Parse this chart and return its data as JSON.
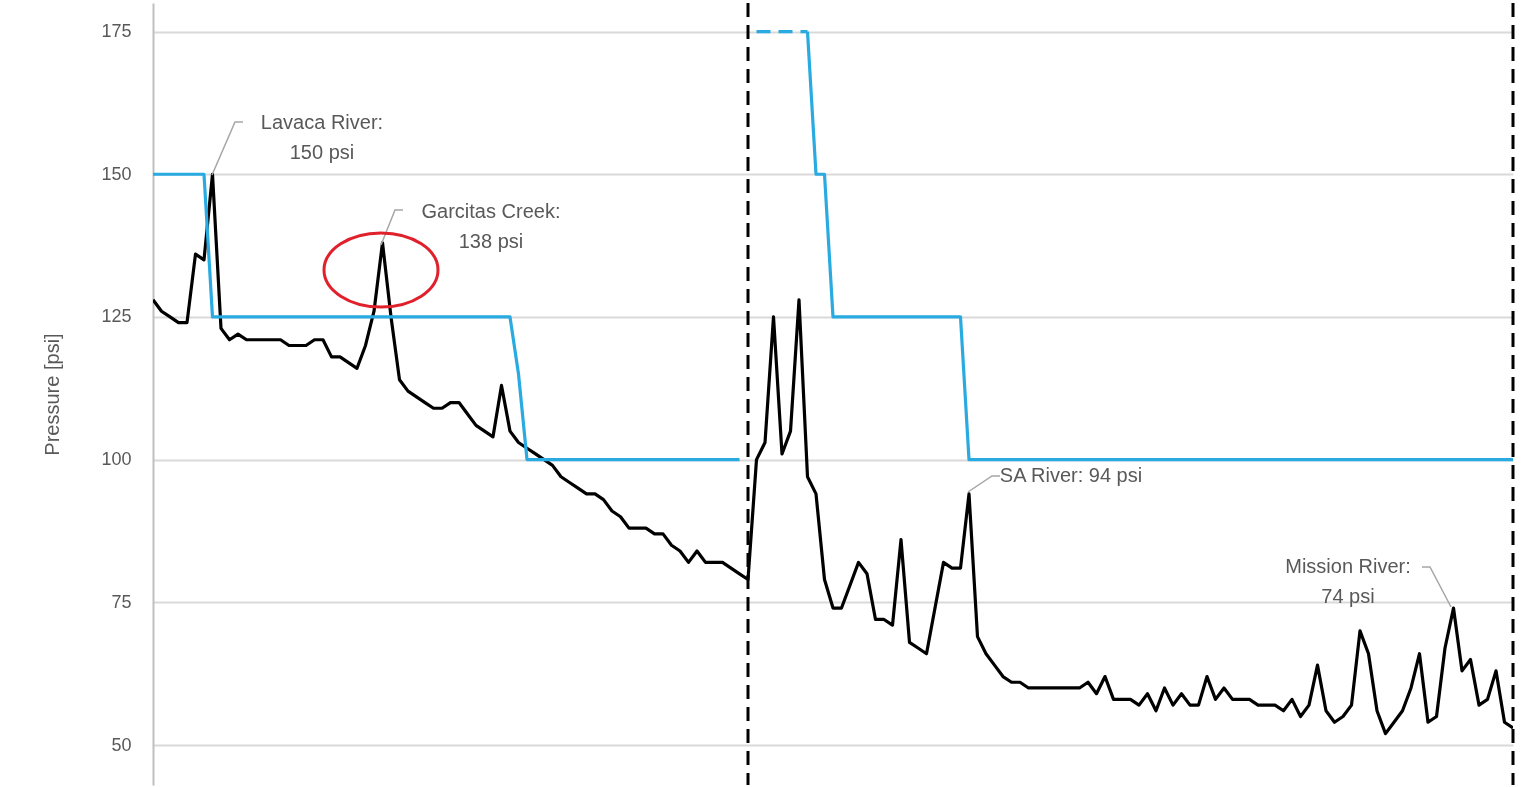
{
  "chart_data": {
    "type": "line",
    "ylabel": "Pressure [psi]",
    "ylim": [
      43,
      180
    ],
    "yticks": [
      50,
      75,
      100,
      125,
      150,
      175
    ],
    "grid": "y",
    "tick_labels": "y",
    "categories": [
      null,
      null,
      null,
      null,
      null,
      null,
      null,
      null,
      null,
      null,
      null,
      null,
      null,
      null,
      null,
      null,
      null,
      null,
      null,
      null,
      null,
      null,
      null,
      null,
      null,
      null,
      null,
      null,
      null,
      null,
      null,
      null,
      null,
      null,
      null,
      null,
      null,
      null,
      null,
      null,
      null,
      null,
      null,
      null,
      null,
      null,
      null,
      null,
      null,
      null,
      null,
      null,
      null,
      null,
      null,
      null,
      null,
      null,
      null,
      null,
      null,
      null,
      null,
      null,
      null,
      null,
      null,
      null,
      null,
      null,
      null,
      null,
      null,
      null,
      null,
      null,
      null,
      null,
      null,
      null,
      null,
      null,
      null,
      null,
      null,
      null,
      null,
      null,
      null,
      null,
      null,
      null,
      null,
      null,
      null,
      null,
      null,
      null,
      null,
      null,
      null,
      null,
      null,
      null,
      null,
      null,
      null,
      null,
      null,
      null,
      null,
      null,
      null,
      null,
      null,
      null,
      null,
      null,
      null,
      null,
      null,
      null,
      null,
      null,
      null,
      null,
      null,
      null,
      null,
      null,
      null,
      null,
      null,
      null,
      null,
      null,
      null,
      null,
      null,
      null,
      null,
      null,
      null,
      null,
      null,
      null,
      null,
      null,
      null,
      null,
      null,
      null,
      null,
      null,
      null,
      null,
      null,
      null,
      null,
      null,
      null
    ],
    "series": [
      {
        "color": "#000000",
        "line_style": "solid",
        "values": [
          128,
          126,
          125,
          124,
          124,
          136,
          135,
          150,
          123,
          121,
          122,
          121,
          121,
          121,
          121,
          121,
          120,
          120,
          120,
          121,
          121,
          118,
          118,
          117,
          116,
          120,
          126,
          138,
          125,
          114,
          112,
          111,
          110,
          109,
          109,
          110,
          110,
          108,
          106,
          105,
          104,
          113,
          105,
          103,
          102,
          101,
          100,
          99,
          97,
          96,
          95,
          94,
          94,
          93,
          91,
          90,
          88,
          88,
          88,
          87,
          87,
          85,
          84,
          82,
          84,
          82,
          82,
          82,
          81,
          80,
          79,
          100,
          103,
          125,
          101,
          105,
          128,
          97,
          94,
          79,
          74,
          74,
          78,
          82,
          80,
          72,
          72,
          71,
          86,
          68,
          67,
          66,
          74,
          82,
          81,
          81,
          94,
          69,
          66,
          64,
          62,
          61,
          61,
          60,
          60,
          60,
          60,
          60,
          60,
          60,
          61,
          59,
          62,
          58,
          58,
          58,
          57,
          59,
          56,
          60,
          57,
          59,
          57,
          57,
          62,
          58,
          60,
          58,
          58,
          58,
          57,
          57,
          57,
          56,
          58,
          55,
          57,
          64,
          56,
          54,
          55,
          57,
          70,
          66,
          56,
          52,
          54,
          56,
          60,
          66,
          54,
          55,
          67,
          74,
          63,
          65,
          57,
          58,
          63,
          54,
          53
        ]
      },
      {
        "color": "#29abe2",
        "line_style": "solid",
        "values": [
          150,
          150,
          150,
          150,
          150,
          150,
          150,
          125,
          125,
          125,
          125,
          125,
          125,
          125,
          125,
          125,
          125,
          125,
          125,
          125,
          125,
          125,
          125,
          125,
          125,
          125,
          125,
          125,
          125,
          125,
          125,
          125,
          125,
          125,
          125,
          125,
          125,
          125,
          125,
          125,
          125,
          125,
          125,
          115,
          100,
          100,
          100,
          100,
          100,
          100,
          100,
          100,
          100,
          100,
          100,
          100,
          100,
          100,
          100,
          100,
          100,
          100,
          100,
          100,
          100,
          100,
          100,
          100,
          100,
          100,
          null,
          null,
          null,
          null,
          null,
          null,
          null,
          175,
          150,
          150,
          125,
          125,
          125,
          125,
          125,
          125,
          125,
          125,
          125,
          125,
          125,
          125,
          125,
          125,
          125,
          125,
          100,
          100,
          100,
          100,
          100,
          100,
          100,
          100,
          100,
          100,
          100,
          100,
          100,
          100,
          100,
          100,
          100,
          100,
          100,
          100,
          100,
          100,
          100,
          100,
          100,
          100,
          100,
          100,
          100,
          100,
          100,
          100,
          100,
          100,
          100,
          100,
          100,
          100,
          100,
          100,
          100,
          100,
          100,
          100,
          100,
          100,
          100,
          100,
          100,
          100,
          100,
          100,
          100,
          100,
          100,
          100,
          100,
          100,
          100,
          100,
          100,
          100,
          100,
          100,
          100
        ]
      },
      {
        "color": "#29abe2",
        "line_style": "dashed",
        "values": [
          null,
          null,
          null,
          null,
          null,
          null,
          null,
          null,
          null,
          null,
          null,
          null,
          null,
          null,
          null,
          null,
          null,
          null,
          null,
          null,
          null,
          null,
          null,
          null,
          null,
          null,
          null,
          null,
          null,
          null,
          null,
          null,
          null,
          null,
          null,
          null,
          null,
          null,
          null,
          null,
          null,
          null,
          null,
          null,
          null,
          null,
          null,
          null,
          null,
          null,
          null,
          null,
          null,
          null,
          null,
          null,
          null,
          null,
          null,
          null,
          null,
          null,
          null,
          null,
          null,
          null,
          null,
          null,
          null,
          null,
          null,
          175,
          175,
          175,
          175,
          175,
          175,
          175,
          null,
          null,
          null,
          null,
          null,
          null,
          null,
          null,
          null,
          null,
          null,
          null,
          null,
          null,
          null,
          null,
          null,
          null,
          null,
          null,
          null,
          null,
          null,
          null,
          null,
          null,
          null,
          null,
          null,
          null,
          null,
          null,
          null,
          null,
          null,
          null,
          null,
          null,
          null,
          null,
          null,
          null,
          null,
          null,
          null,
          null,
          null,
          null,
          null,
          null,
          null,
          null,
          null,
          null,
          null,
          null,
          null,
          null,
          null,
          null,
          null,
          null,
          null,
          null,
          null,
          null,
          null,
          null,
          null,
          null,
          null,
          null,
          null,
          null,
          null,
          null,
          null,
          null,
          null,
          null,
          null,
          null,
          null
        ]
      }
    ],
    "annotations": [
      "Lavaca River:\n150 psi",
      "Garcitas Creek:\n138 psi",
      "SA River: 94 psi",
      "Mission River:\n74 psi"
    ]
  }
}
